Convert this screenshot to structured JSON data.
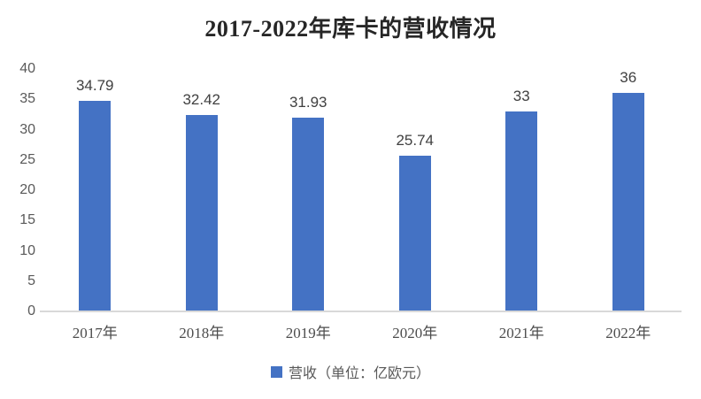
{
  "header": {
    "title": "2017-2022年库卡的营收情况"
  },
  "chart_data": {
    "type": "bar",
    "title": "2017-2022年库卡的营收情况",
    "categories": [
      "2017年",
      "2018年",
      "2019年",
      "2020年",
      "2021年",
      "2022年"
    ],
    "series": [
      {
        "name": "营收（单位：亿欧元）",
        "values": [
          34.79,
          32.42,
          31.93,
          25.74,
          33,
          36
        ],
        "value_labels": [
          "34.79",
          "32.42",
          "31.93",
          "25.74",
          "33",
          "36"
        ],
        "color": "#4472c4"
      }
    ],
    "xlabel": "",
    "ylabel": "",
    "ylim": [
      0,
      40
    ],
    "yticks": [
      0,
      5,
      10,
      15,
      20,
      25,
      30,
      35,
      40
    ],
    "grid": false,
    "legend_position": "bottom",
    "data_labels": true
  },
  "legend": {
    "marker_color": "#4472c4",
    "label": "营收（单位：亿欧元）"
  },
  "colors": {
    "bar": "#4472c4",
    "axis_line": "#d9d9d9",
    "tick_text": "#595959",
    "value_label_text": "#404040",
    "title_text": "#262626",
    "background": "#ffffff"
  }
}
